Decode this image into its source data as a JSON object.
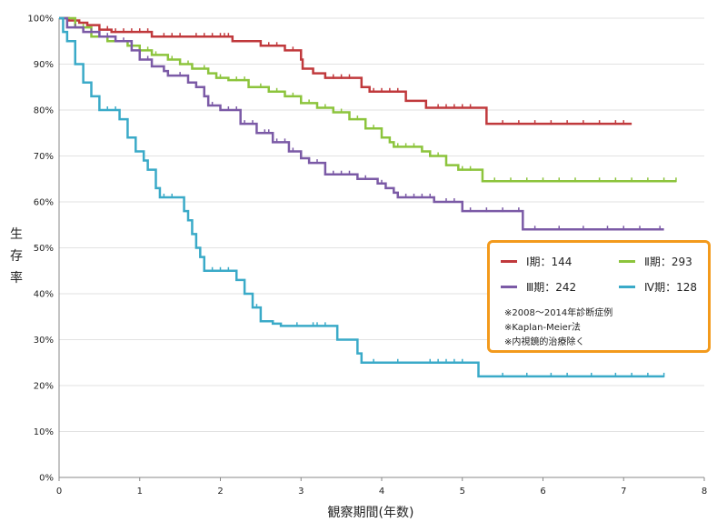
{
  "chart_data": {
    "type": "line",
    "ylabel": "生\n存\n率",
    "xlabel": "観察期間(年数)",
    "xlim": [
      0,
      8
    ],
    "ylim": [
      0,
      100
    ],
    "x_ticks": [
      "0",
      "1",
      "2",
      "3",
      "4",
      "5",
      "6",
      "7",
      "8"
    ],
    "y_ticks": [
      "0%",
      "10%",
      "20%",
      "30%",
      "40%",
      "50%",
      "60%",
      "70%",
      "80%",
      "90%",
      "100%"
    ],
    "grid": "horizontal",
    "legend_placement": "right",
    "legend": [
      {
        "label": "Ⅰ期：144",
        "color": "#c0393c"
      },
      {
        "label": "Ⅱ期：293",
        "color": "#8cc43c"
      },
      {
        "label": "Ⅲ期：242",
        "color": "#7b5aa6"
      },
      {
        "label": "Ⅳ期：128",
        "color": "#3aaac8"
      }
    ],
    "notes": [
      "※2008～2014年診断症例",
      "※Kaplan-Meier法",
      "※内視鏡的治療除く"
    ],
    "series": [
      {
        "name": "Ⅰ期：144",
        "color": "#c0393c",
        "steps": [
          [
            0,
            100
          ],
          [
            0.12,
            99.5
          ],
          [
            0.25,
            99
          ],
          [
            0.35,
            98.5
          ],
          [
            0.5,
            97.5
          ],
          [
            0.65,
            97
          ],
          [
            1.15,
            96
          ],
          [
            2.15,
            95
          ],
          [
            2.5,
            94
          ],
          [
            2.8,
            93
          ],
          [
            3.0,
            91
          ],
          [
            3.02,
            89
          ],
          [
            3.15,
            88
          ],
          [
            3.3,
            87
          ],
          [
            3.75,
            85
          ],
          [
            3.85,
            84
          ],
          [
            4.3,
            82
          ],
          [
            4.55,
            80.5
          ],
          [
            5.3,
            77
          ]
        ],
        "end": 7.1,
        "censor": [
          0.5,
          0.6,
          0.7,
          0.8,
          0.9,
          1.0,
          1.1,
          1.3,
          1.4,
          1.5,
          1.7,
          1.8,
          1.9,
          2.0,
          2.05,
          2.1,
          2.6,
          2.7,
          2.9,
          3.4,
          3.5,
          3.6,
          3.9,
          4.0,
          4.1,
          4.2,
          4.7,
          4.8,
          4.9,
          5.0,
          5.1,
          5.5,
          5.7,
          5.9,
          6.1,
          6.3,
          6.5,
          6.7,
          6.9,
          7.0
        ]
      },
      {
        "name": "Ⅱ期：293",
        "color": "#8cc43c",
        "steps": [
          [
            0,
            100
          ],
          [
            0.2,
            98
          ],
          [
            0.4,
            96
          ],
          [
            0.6,
            95
          ],
          [
            0.85,
            94
          ],
          [
            1.0,
            93
          ],
          [
            1.15,
            92
          ],
          [
            1.35,
            91
          ],
          [
            1.5,
            90
          ],
          [
            1.65,
            89
          ],
          [
            1.85,
            88
          ],
          [
            1.95,
            87
          ],
          [
            2.1,
            86.5
          ],
          [
            2.35,
            85
          ],
          [
            2.6,
            84
          ],
          [
            2.8,
            83
          ],
          [
            3.0,
            81.5
          ],
          [
            3.2,
            80.5
          ],
          [
            3.4,
            79.5
          ],
          [
            3.6,
            78
          ],
          [
            3.8,
            76
          ],
          [
            4.0,
            74
          ],
          [
            4.1,
            73
          ],
          [
            4.15,
            72
          ],
          [
            4.5,
            71
          ],
          [
            4.6,
            70
          ],
          [
            4.8,
            68
          ],
          [
            4.95,
            67
          ],
          [
            5.25,
            64.5
          ]
        ],
        "end": 7.65,
        "censor": [
          0.3,
          0.5,
          0.7,
          0.9,
          1.1,
          1.2,
          1.4,
          1.6,
          1.8,
          2.0,
          2.2,
          2.3,
          2.5,
          2.7,
          2.9,
          3.1,
          3.3,
          3.5,
          3.7,
          3.9,
          4.2,
          4.3,
          4.4,
          4.6,
          4.7,
          5.0,
          5.1,
          5.4,
          5.6,
          5.8,
          6.0,
          6.2,
          6.4,
          6.7,
          6.9,
          7.1,
          7.3,
          7.5,
          7.65
        ]
      },
      {
        "name": "Ⅲ期：242",
        "color": "#7b5aa6",
        "steps": [
          [
            0,
            100
          ],
          [
            0.1,
            98
          ],
          [
            0.3,
            97
          ],
          [
            0.5,
            96
          ],
          [
            0.7,
            95
          ],
          [
            0.9,
            93
          ],
          [
            1.0,
            91
          ],
          [
            1.15,
            89.5
          ],
          [
            1.3,
            88.5
          ],
          [
            1.35,
            87.5
          ],
          [
            1.6,
            86
          ],
          [
            1.7,
            85
          ],
          [
            1.8,
            83
          ],
          [
            1.85,
            81
          ],
          [
            2.0,
            80
          ],
          [
            2.25,
            77
          ],
          [
            2.45,
            75
          ],
          [
            2.65,
            73
          ],
          [
            2.85,
            71
          ],
          [
            3.0,
            69.5
          ],
          [
            3.1,
            68.5
          ],
          [
            3.3,
            66
          ],
          [
            3.7,
            65
          ],
          [
            3.95,
            64
          ],
          [
            4.05,
            63
          ],
          [
            4.15,
            62
          ],
          [
            4.2,
            61
          ],
          [
            4.65,
            60
          ],
          [
            5.0,
            58
          ],
          [
            5.75,
            54
          ]
        ],
        "end": 7.5,
        "censor": [
          0.2,
          0.4,
          0.6,
          0.8,
          1.1,
          1.5,
          1.9,
          2.1,
          2.2,
          2.3,
          2.4,
          2.55,
          2.6,
          2.7,
          2.8,
          2.9,
          3.0,
          3.2,
          3.4,
          3.5,
          3.6,
          3.8,
          4.0,
          4.3,
          4.4,
          4.5,
          4.6,
          4.8,
          4.9,
          5.1,
          5.3,
          5.5,
          5.7,
          5.9,
          6.2,
          6.5,
          6.8,
          7.0,
          7.2,
          7.45
        ]
      },
      {
        "name": "Ⅳ期：128",
        "color": "#3aaac8",
        "steps": [
          [
            0,
            100
          ],
          [
            0.05,
            97
          ],
          [
            0.1,
            95
          ],
          [
            0.2,
            90
          ],
          [
            0.3,
            86
          ],
          [
            0.4,
            83
          ],
          [
            0.5,
            80
          ],
          [
            0.75,
            78
          ],
          [
            0.85,
            74
          ],
          [
            0.95,
            71
          ],
          [
            1.05,
            69
          ],
          [
            1.1,
            67
          ],
          [
            1.2,
            63
          ],
          [
            1.25,
            61
          ],
          [
            1.55,
            58
          ],
          [
            1.6,
            56
          ],
          [
            1.65,
            53
          ],
          [
            1.7,
            50
          ],
          [
            1.75,
            48
          ],
          [
            1.8,
            45
          ],
          [
            2.2,
            43
          ],
          [
            2.3,
            40
          ],
          [
            2.4,
            37
          ],
          [
            2.5,
            34
          ],
          [
            2.65,
            33.5
          ],
          [
            2.75,
            33
          ],
          [
            3.45,
            30
          ],
          [
            3.7,
            27
          ],
          [
            3.75,
            25
          ],
          [
            5.2,
            22
          ]
        ],
        "end": 7.5,
        "censor": [
          0.6,
          0.7,
          1.3,
          1.4,
          1.9,
          2.0,
          2.1,
          2.45,
          2.95,
          3.15,
          3.2,
          3.3,
          3.9,
          4.2,
          4.6,
          4.7,
          4.8,
          4.9,
          5.0,
          5.5,
          5.8,
          6.1,
          6.3,
          6.6,
          6.9,
          7.1,
          7.3,
          7.5
        ]
      }
    ]
  }
}
